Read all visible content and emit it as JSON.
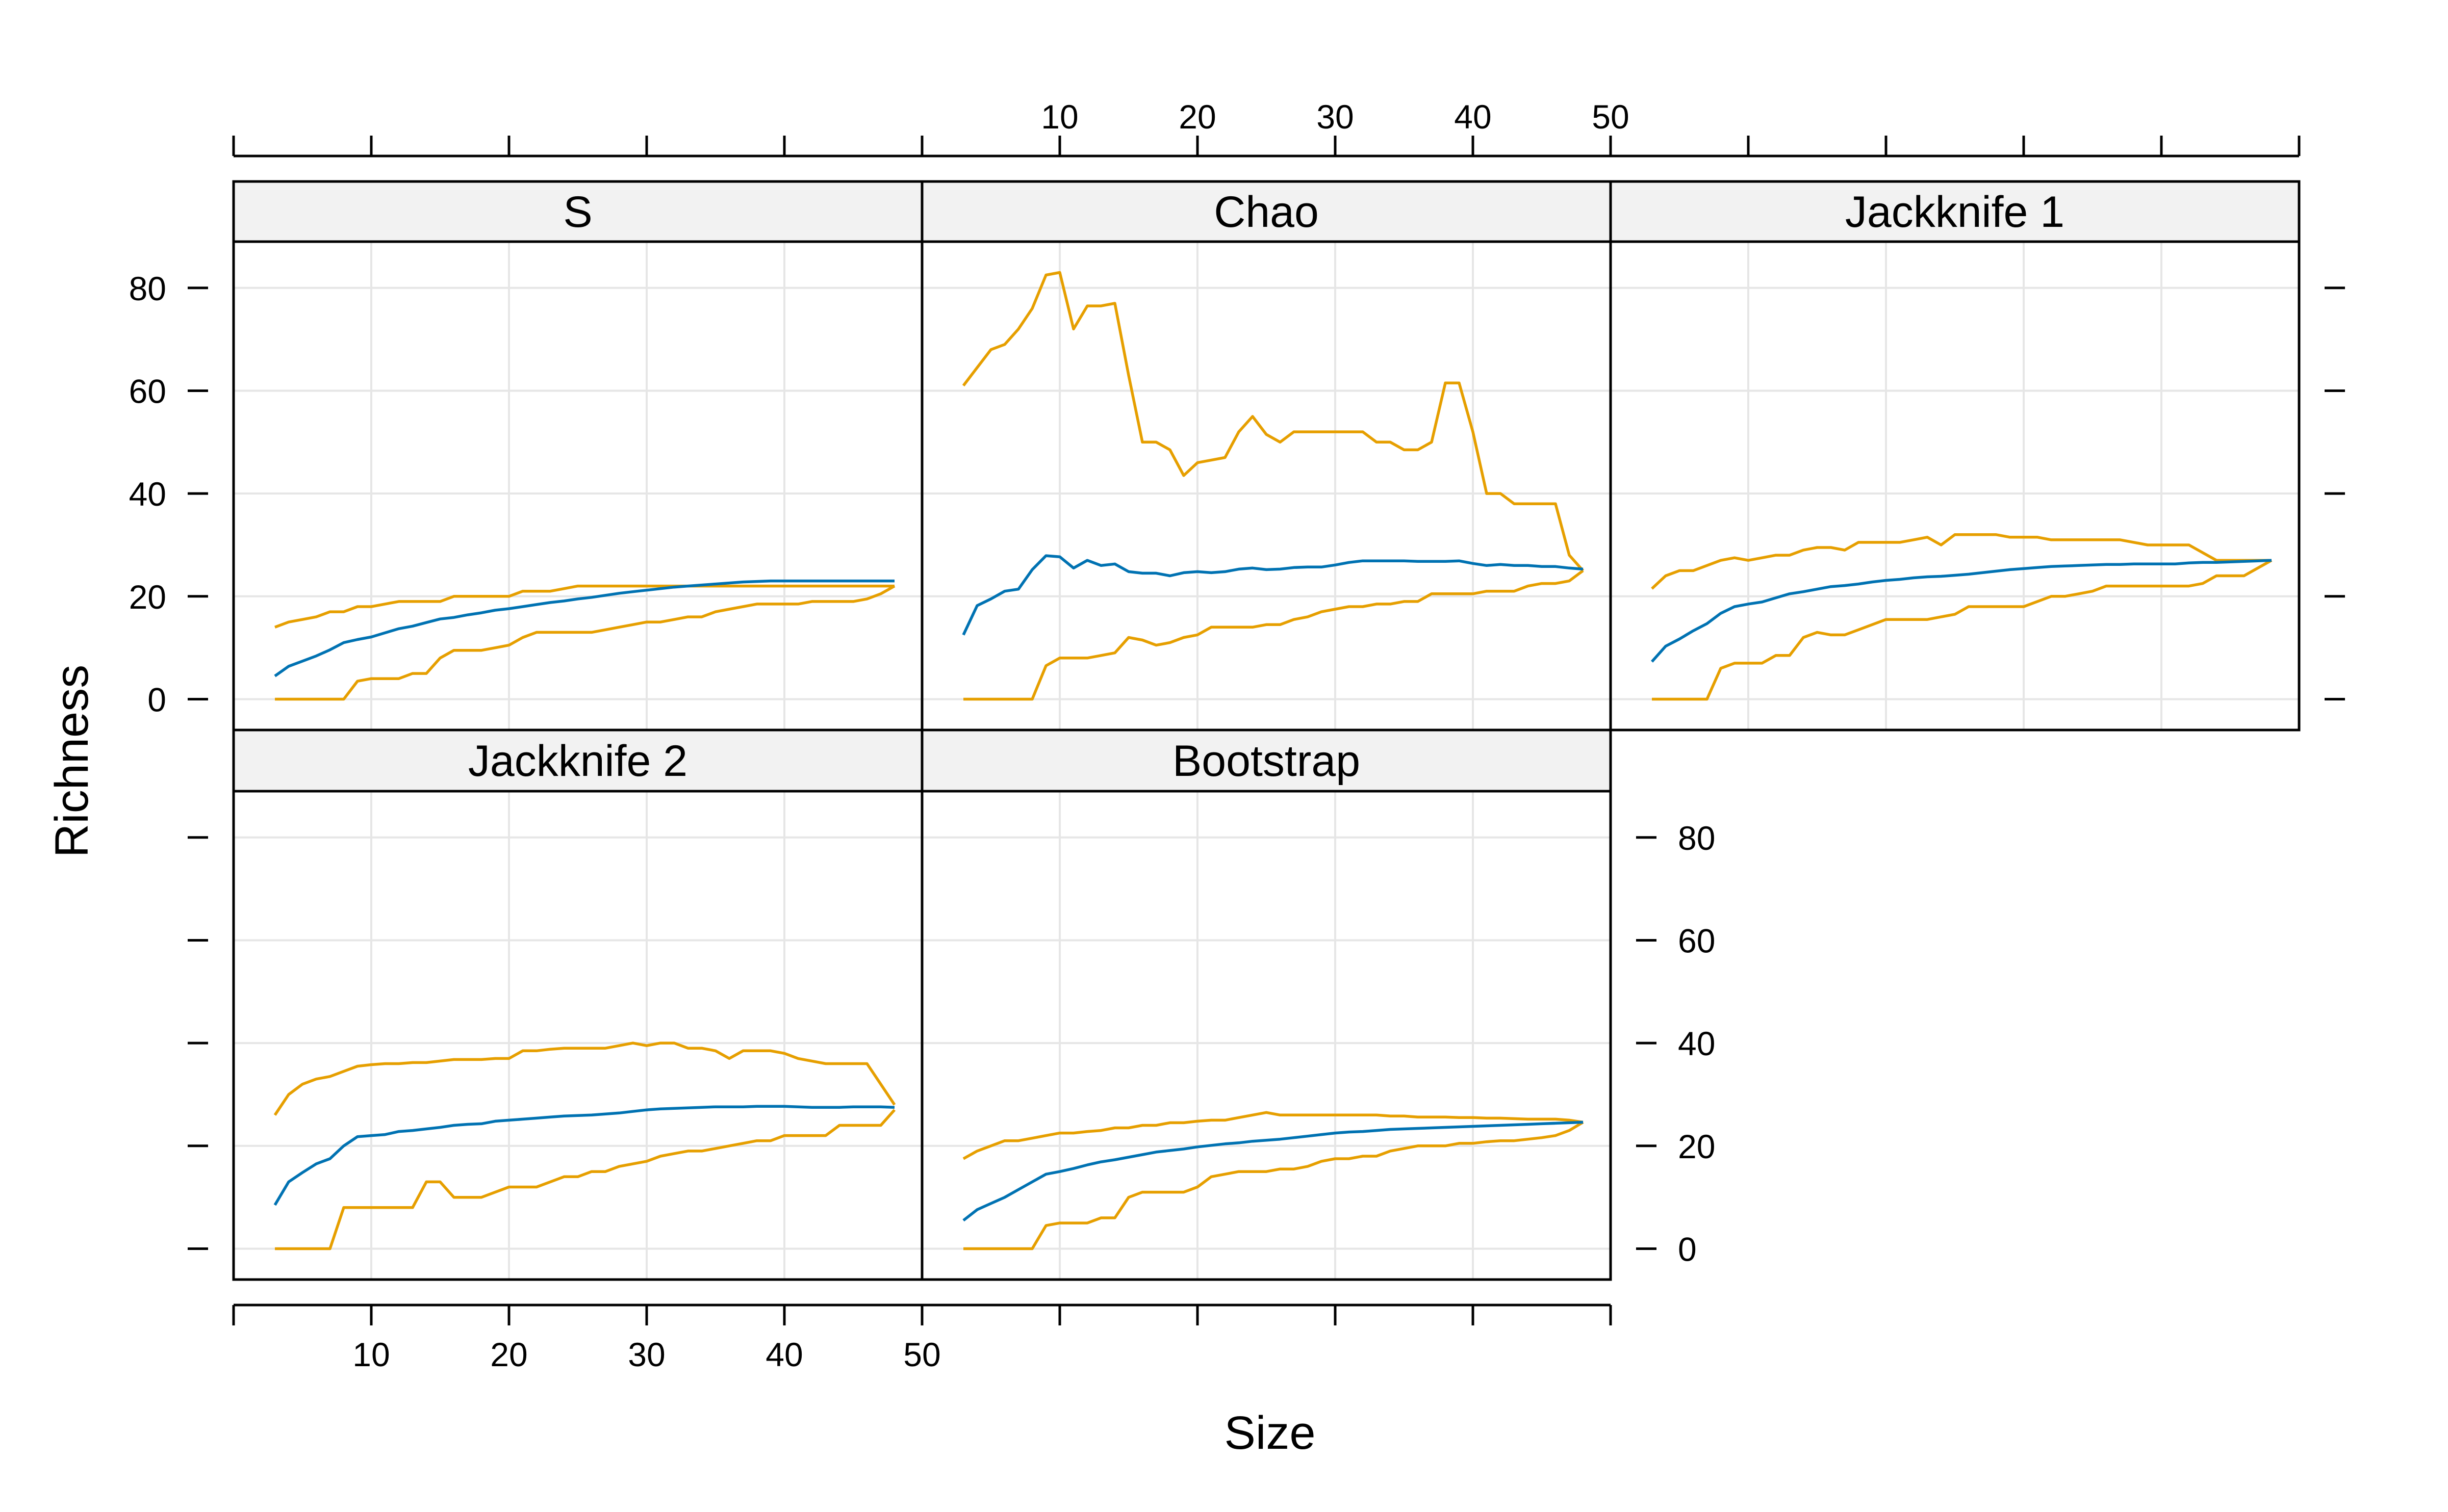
{
  "figure": {
    "xlabel": "Size",
    "ylabel": "Richness"
  },
  "chart_data": {
    "type": "line",
    "layout": "lattice 3 columns x 2 rows",
    "xlabel": "Size",
    "ylabel": "Richness",
    "xlim": [
      0,
      50
    ],
    "ylim": [
      -6,
      89
    ],
    "xticks": [
      10,
      20,
      30,
      40,
      50
    ],
    "yticks": [
      0,
      20,
      40,
      60,
      80
    ],
    "grid": true,
    "colors": {
      "estimate": "#0072B2",
      "bounds": "#E69F00",
      "strip_fill": "#F2F2F2",
      "grid": "#E6E6E6"
    },
    "x": [
      3,
      4,
      5,
      6,
      7,
      8,
      9,
      10,
      11,
      12,
      13,
      14,
      15,
      16,
      17,
      18,
      19,
      20,
      21,
      22,
      23,
      24,
      25,
      26,
      27,
      28,
      29,
      30,
      31,
      32,
      33,
      34,
      35,
      36,
      37,
      38,
      39,
      40,
      41,
      42,
      43,
      44,
      45,
      46,
      47,
      48
    ],
    "panels": [
      {
        "title": "S",
        "estimate": [
          4.5,
          6.4,
          7.4,
          8.4,
          9.6,
          11.0,
          11.6,
          12.1,
          12.9,
          13.7,
          14.2,
          14.9,
          15.6,
          15.9,
          16.4,
          16.8,
          17.3,
          17.6,
          18.0,
          18.4,
          18.8,
          19.1,
          19.5,
          19.8,
          20.2,
          20.6,
          20.9,
          21.2,
          21.5,
          21.8,
          22.0,
          22.2,
          22.4,
          22.6,
          22.8,
          22.9,
          23.0,
          23.0,
          23.0,
          23.0,
          23.0,
          23.0,
          23.0,
          23.0,
          23.0,
          23.0
        ],
        "upper": [
          14.0,
          15.0,
          15.5,
          16.0,
          17.0,
          17.0,
          18.0,
          18.0,
          18.5,
          19.0,
          19.0,
          19.0,
          19.0,
          20.0,
          20.0,
          20.0,
          20.0,
          20.0,
          21.0,
          21.0,
          21.0,
          21.5,
          22.0,
          22.0,
          22.0,
          22.0,
          22.0,
          22.0,
          22.0,
          22.0,
          22.0,
          22.0,
          22.0,
          22.0,
          22.0,
          22.0,
          22.0,
          22.0,
          22.0,
          22.0,
          22.0,
          22.0,
          22.0,
          22.0,
          22.0,
          22.0
        ],
        "lower": [
          0.0,
          0.0,
          0.0,
          0.0,
          0.0,
          0.0,
          3.5,
          4.0,
          4.0,
          4.0,
          5.0,
          5.0,
          8.0,
          9.5,
          9.5,
          9.5,
          10.0,
          10.5,
          12.0,
          13.0,
          13.0,
          13.0,
          13.0,
          13.0,
          13.5,
          14.0,
          14.5,
          15.0,
          15.0,
          15.5,
          16.0,
          16.0,
          17.0,
          17.5,
          18.0,
          18.5,
          18.5,
          18.5,
          18.5,
          19.0,
          19.0,
          19.0,
          19.0,
          19.5,
          20.5,
          22.0
        ]
      },
      {
        "title": "Chao",
        "estimate": [
          12.5,
          18.2,
          19.5,
          21.0,
          21.4,
          25.2,
          27.9,
          27.7,
          25.5,
          27.0,
          26.0,
          26.3,
          24.8,
          24.5,
          24.5,
          24.0,
          24.6,
          24.8,
          24.6,
          24.8,
          25.3,
          25.5,
          25.2,
          25.3,
          25.6,
          25.7,
          25.7,
          26.1,
          26.6,
          26.9,
          26.9,
          26.9,
          26.9,
          26.8,
          26.8,
          26.8,
          26.9,
          26.4,
          26.0,
          26.2,
          26.0,
          26.0,
          25.8,
          25.8,
          25.5,
          25.3
        ],
        "upper": [
          61.0,
          64.5,
          68.0,
          69.0,
          72.0,
          76.0,
          82.5,
          83.0,
          72.0,
          76.5,
          76.5,
          77.0,
          63.0,
          50.0,
          50.0,
          48.5,
          43.5,
          46.0,
          46.5,
          47.0,
          52.0,
          55.0,
          51.5,
          50.0,
          52.0,
          52.0,
          52.0,
          52.0,
          52.0,
          52.0,
          50.0,
          50.0,
          48.5,
          48.5,
          50.0,
          61.5,
          61.5,
          52.0,
          40.0,
          40.0,
          38.0,
          38.0,
          38.0,
          38.0,
          28.0,
          25.0
        ],
        "lower": [
          0.0,
          0.0,
          0.0,
          0.0,
          0.0,
          0.0,
          6.5,
          8.0,
          8.0,
          8.0,
          8.5,
          9.0,
          12.0,
          11.5,
          10.5,
          11.0,
          12.0,
          12.5,
          14.0,
          14.0,
          14.0,
          14.0,
          14.5,
          14.5,
          15.5,
          16.0,
          17.0,
          17.5,
          18.0,
          18.0,
          18.5,
          18.5,
          19.0,
          19.0,
          20.5,
          20.5,
          20.5,
          20.5,
          21.0,
          21.0,
          21.0,
          22.0,
          22.5,
          22.5,
          23.0,
          25.0
        ]
      },
      {
        "title": "Jackknife 1",
        "estimate": [
          7.3,
          10.3,
          11.7,
          13.3,
          14.7,
          16.7,
          18.0,
          18.5,
          18.9,
          19.7,
          20.5,
          20.9,
          21.4,
          21.9,
          22.1,
          22.4,
          22.8,
          23.1,
          23.3,
          23.6,
          23.8,
          23.9,
          24.1,
          24.3,
          24.6,
          24.9,
          25.2,
          25.4,
          25.6,
          25.8,
          25.9,
          26.0,
          26.1,
          26.2,
          26.2,
          26.3,
          26.3,
          26.3,
          26.3,
          26.5,
          26.6,
          26.6,
          26.7,
          26.8,
          26.9,
          27.0
        ],
        "upper": [
          21.5,
          24.0,
          25.0,
          25.0,
          26.0,
          27.0,
          27.5,
          27.0,
          27.5,
          28.0,
          28.0,
          29.0,
          29.5,
          29.5,
          29.0,
          30.5,
          30.5,
          30.5,
          30.5,
          31.0,
          31.5,
          30.0,
          32.0,
          32.0,
          32.0,
          32.0,
          31.5,
          31.5,
          31.5,
          31.0,
          31.0,
          31.0,
          31.0,
          31.0,
          31.0,
          30.5,
          30.0,
          30.0,
          30.0,
          30.0,
          28.5,
          27.0,
          27.0,
          27.0,
          27.0,
          27.0
        ],
        "lower": [
          0.0,
          0.0,
          0.0,
          0.0,
          0.0,
          6.0,
          7.0,
          7.0,
          7.0,
          8.5,
          8.5,
          12.0,
          13.0,
          12.5,
          12.5,
          13.5,
          14.5,
          15.5,
          15.5,
          15.5,
          15.5,
          16.0,
          16.5,
          18.0,
          18.0,
          18.0,
          18.0,
          18.0,
          19.0,
          20.0,
          20.0,
          20.5,
          21.0,
          22.0,
          22.0,
          22.0,
          22.0,
          22.0,
          22.0,
          22.0,
          22.5,
          24.0,
          24.0,
          24.0,
          25.5,
          27.0
        ]
      },
      {
        "title": "Jackknife 2",
        "estimate": [
          8.5,
          13.0,
          14.8,
          16.5,
          17.5,
          20.0,
          21.8,
          22.0,
          22.2,
          22.8,
          23.0,
          23.3,
          23.6,
          24.0,
          24.2,
          24.3,
          24.8,
          25.0,
          25.2,
          25.4,
          25.6,
          25.8,
          25.9,
          26.0,
          26.2,
          26.4,
          26.7,
          27.0,
          27.2,
          27.3,
          27.4,
          27.5,
          27.6,
          27.6,
          27.6,
          27.7,
          27.7,
          27.7,
          27.6,
          27.5,
          27.5,
          27.5,
          27.6,
          27.6,
          27.6,
          27.5
        ],
        "upper": [
          26.0,
          30.0,
          32.0,
          33.0,
          33.5,
          34.5,
          35.5,
          35.8,
          36.0,
          36.0,
          36.2,
          36.2,
          36.5,
          36.8,
          36.8,
          36.8,
          37.0,
          37.0,
          38.5,
          38.5,
          38.8,
          39.0,
          39.0,
          39.0,
          39.0,
          39.5,
          40.0,
          39.5,
          40.0,
          40.0,
          39.0,
          39.0,
          38.5,
          37.0,
          38.5,
          38.5,
          38.5,
          38.0,
          37.0,
          36.5,
          36.0,
          36.0,
          36.0,
          36.0,
          32.0,
          28.0
        ],
        "lower": [
          0.0,
          0.0,
          0.0,
          0.0,
          0.0,
          8.0,
          8.0,
          8.0,
          8.0,
          8.0,
          8.0,
          13.0,
          13.0,
          10.0,
          10.0,
          10.0,
          11.0,
          12.0,
          12.0,
          12.0,
          13.0,
          14.0,
          14.0,
          15.0,
          15.0,
          16.0,
          16.5,
          17.0,
          18.0,
          18.5,
          19.0,
          19.0,
          19.5,
          20.0,
          20.5,
          21.0,
          21.0,
          22.0,
          22.0,
          22.0,
          22.0,
          24.0,
          24.0,
          24.0,
          24.0,
          27.0
        ]
      },
      {
        "title": "Bootstrap",
        "estimate": [
          5.5,
          7.6,
          8.8,
          10.0,
          11.5,
          13.0,
          14.5,
          15.0,
          15.6,
          16.3,
          16.9,
          17.3,
          17.8,
          18.3,
          18.8,
          19.1,
          19.4,
          19.8,
          20.1,
          20.4,
          20.6,
          20.9,
          21.1,
          21.3,
          21.6,
          21.9,
          22.2,
          22.5,
          22.7,
          22.8,
          23.0,
          23.2,
          23.3,
          23.4,
          23.5,
          23.6,
          23.7,
          23.8,
          23.9,
          24.0,
          24.1,
          24.2,
          24.3,
          24.4,
          24.5,
          24.6
        ],
        "upper": [
          17.5,
          19.0,
          20.0,
          21.0,
          21.0,
          21.5,
          22.0,
          22.5,
          22.5,
          22.8,
          23.0,
          23.5,
          23.5,
          24.0,
          24.0,
          24.5,
          24.5,
          24.8,
          25.0,
          25.0,
          25.5,
          26.0,
          26.5,
          26.0,
          26.0,
          26.0,
          26.0,
          26.0,
          26.0,
          26.0,
          26.0,
          25.8,
          25.8,
          25.6,
          25.6,
          25.6,
          25.5,
          25.5,
          25.4,
          25.4,
          25.3,
          25.2,
          25.2,
          25.2,
          25.0,
          24.6
        ],
        "lower": [
          0.0,
          0.0,
          0.0,
          0.0,
          0.0,
          0.0,
          4.5,
          5.0,
          5.0,
          5.0,
          6.0,
          6.0,
          10.0,
          11.0,
          11.0,
          11.0,
          11.0,
          12.0,
          14.0,
          14.5,
          15.0,
          15.0,
          15.0,
          15.5,
          15.5,
          16.0,
          17.0,
          17.5,
          17.5,
          18.0,
          18.0,
          19.0,
          19.5,
          20.0,
          20.0,
          20.0,
          20.5,
          20.5,
          20.8,
          21.0,
          21.0,
          21.3,
          21.6,
          22.0,
          23.0,
          24.6
        ]
      }
    ]
  }
}
